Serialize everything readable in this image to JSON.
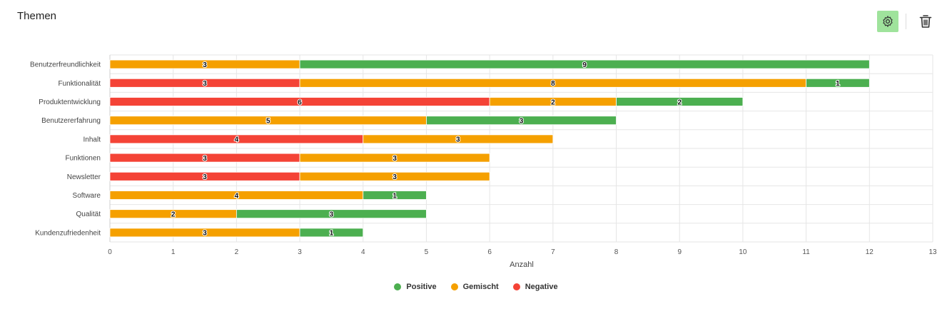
{
  "panel": {
    "title": "Themen",
    "settings_icon": "gear-icon",
    "delete_icon": "trash-icon"
  },
  "chart_data": {
    "type": "bar",
    "orientation": "horizontal",
    "stacked": true,
    "title": "",
    "xlabel": "Anzahl",
    "ylabel": "",
    "xlim": [
      0,
      13
    ],
    "x_ticks": [
      0,
      1,
      2,
      3,
      4,
      5,
      6,
      7,
      8,
      9,
      10,
      11,
      12,
      13
    ],
    "grid": true,
    "legend_position": "bottom-center",
    "categories": [
      "Benutzerfreundlichkeit",
      "Funktionalität",
      "Produktentwicklung",
      "Benutzererfahrung",
      "Inhalt",
      "Funktionen",
      "Newsletter",
      "Software",
      "Qualität",
      "Kundenzufriedenheit"
    ],
    "segment_order": [
      "Negative",
      "Gemischt",
      "Positive"
    ],
    "series": [
      {
        "name": "Positive",
        "color": "#4caf50",
        "values": [
          9,
          1,
          2,
          3,
          0,
          0,
          0,
          1,
          3,
          1
        ]
      },
      {
        "name": "Gemischt",
        "color": "#f5a000",
        "values": [
          3,
          8,
          2,
          5,
          3,
          3,
          3,
          4,
          2,
          3
        ]
      },
      {
        "name": "Negative",
        "color": "#f44336",
        "values": [
          0,
          3,
          6,
          0,
          4,
          3,
          3,
          0,
          0,
          0
        ]
      }
    ]
  }
}
